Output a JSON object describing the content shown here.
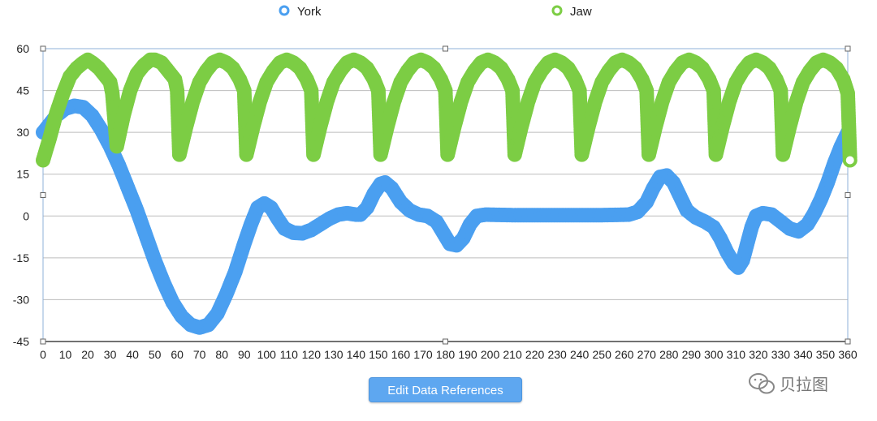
{
  "chart_data": {
    "type": "scatter",
    "xlabel": "",
    "ylabel": "",
    "xlim": [
      0,
      360
    ],
    "ylim": [
      -45,
      60
    ],
    "x_ticks": [
      0,
      10,
      20,
      30,
      40,
      50,
      60,
      70,
      80,
      90,
      100,
      110,
      120,
      130,
      140,
      150,
      160,
      170,
      180,
      190,
      200,
      210,
      220,
      230,
      240,
      250,
      260,
      270,
      280,
      290,
      300,
      310,
      320,
      330,
      340,
      350,
      360
    ],
    "y_ticks": [
      -45,
      -30,
      -15,
      0,
      15,
      30,
      45,
      60
    ],
    "grid": "horizontal",
    "legend": "top",
    "series": [
      {
        "name": "York",
        "color": "#4a9ff0",
        "points": [
          [
            0,
            30
          ],
          [
            3,
            33
          ],
          [
            6,
            36
          ],
          [
            10,
            38.5
          ],
          [
            14,
            39.5
          ],
          [
            18,
            39
          ],
          [
            22,
            36
          ],
          [
            26,
            31
          ],
          [
            30,
            25
          ],
          [
            34,
            18
          ],
          [
            38,
            10
          ],
          [
            42,
            2
          ],
          [
            46,
            -7
          ],
          [
            50,
            -16
          ],
          [
            54,
            -24
          ],
          [
            58,
            -31
          ],
          [
            62,
            -36
          ],
          [
            66,
            -39
          ],
          [
            70,
            -40
          ],
          [
            74,
            -39
          ],
          [
            78,
            -35
          ],
          [
            82,
            -28
          ],
          [
            86,
            -20
          ],
          [
            90,
            -10
          ],
          [
            93,
            -3
          ],
          [
            96,
            3
          ],
          [
            99,
            4.5
          ],
          [
            102,
            3
          ],
          [
            105,
            -1
          ],
          [
            108,
            -4.5
          ],
          [
            112,
            -6
          ],
          [
            116,
            -6.2
          ],
          [
            120,
            -5
          ],
          [
            124,
            -3
          ],
          [
            128,
            -1
          ],
          [
            132,
            0.5
          ],
          [
            136,
            1
          ],
          [
            140,
            0.5
          ],
          [
            142,
            0.5
          ],
          [
            145,
            3
          ],
          [
            148,
            8
          ],
          [
            151,
            11.5
          ],
          [
            153,
            12
          ],
          [
            156,
            10
          ],
          [
            160,
            5
          ],
          [
            164,
            2
          ],
          [
            168,
            0.5
          ],
          [
            172,
            0
          ],
          [
            176,
            -2
          ],
          [
            179,
            -6
          ],
          [
            182,
            -10
          ],
          [
            185,
            -10.5
          ],
          [
            188,
            -8
          ],
          [
            191,
            -3
          ],
          [
            194,
            0
          ],
          [
            198,
            0.5
          ],
          [
            210,
            0.3
          ],
          [
            230,
            0.3
          ],
          [
            250,
            0.3
          ],
          [
            262,
            0.5
          ],
          [
            266,
            1.5
          ],
          [
            270,
            5
          ],
          [
            273,
            10
          ],
          [
            276,
            14
          ],
          [
            279,
            14.5
          ],
          [
            282,
            12
          ],
          [
            285,
            7
          ],
          [
            288,
            2
          ],
          [
            292,
            -0.5
          ],
          [
            296,
            -2
          ],
          [
            300,
            -4
          ],
          [
            303,
            -8
          ],
          [
            306,
            -13
          ],
          [
            309,
            -17
          ],
          [
            311,
            -18.5
          ],
          [
            313,
            -16
          ],
          [
            315,
            -10
          ],
          [
            317,
            -4
          ],
          [
            319,
            0
          ],
          [
            322,
            1
          ],
          [
            326,
            0.5
          ],
          [
            330,
            -2
          ],
          [
            334,
            -4.5
          ],
          [
            338,
            -5.5
          ],
          [
            342,
            -3
          ],
          [
            345,
            1
          ],
          [
            348,
            6
          ],
          [
            351,
            12
          ],
          [
            354,
            19
          ],
          [
            357,
            25
          ],
          [
            360,
            30
          ]
        ]
      },
      {
        "name": "Jaw",
        "color": "#7ccd44",
        "points": [
          [
            0,
            20
          ],
          [
            3,
            28
          ],
          [
            6,
            37
          ],
          [
            9,
            44
          ],
          [
            12,
            50
          ],
          [
            15,
            53
          ],
          [
            18,
            55
          ],
          [
            20,
            56
          ],
          [
            22,
            55
          ],
          [
            25,
            53
          ],
          [
            28,
            50
          ],
          [
            30,
            48
          ],
          [
            31,
            44
          ],
          [
            33,
            25
          ],
          [
            36,
            36
          ],
          [
            39,
            45
          ],
          [
            42,
            51
          ],
          [
            45,
            54
          ],
          [
            48,
            56
          ],
          [
            50,
            56
          ],
          [
            53,
            55
          ],
          [
            56,
            52
          ],
          [
            59,
            49
          ],
          [
            60,
            45
          ],
          [
            61,
            22
          ],
          [
            64,
            32
          ],
          [
            67,
            41
          ],
          [
            70,
            48
          ],
          [
            73,
            52
          ],
          [
            76,
            55
          ],
          [
            79,
            56
          ],
          [
            82,
            55
          ],
          [
            85,
            53
          ],
          [
            88,
            49
          ],
          [
            90,
            45
          ],
          [
            91,
            22
          ],
          [
            94,
            32
          ],
          [
            97,
            41
          ],
          [
            100,
            48
          ],
          [
            103,
            52
          ],
          [
            106,
            55
          ],
          [
            109,
            56
          ],
          [
            112,
            55
          ],
          [
            115,
            53
          ],
          [
            118,
            49
          ],
          [
            120,
            45
          ],
          [
            121,
            22
          ],
          [
            124,
            32
          ],
          [
            127,
            41
          ],
          [
            130,
            48
          ],
          [
            133,
            52
          ],
          [
            136,
            55
          ],
          [
            139,
            56
          ],
          [
            142,
            55
          ],
          [
            145,
            53
          ],
          [
            148,
            49
          ],
          [
            150,
            45
          ],
          [
            151,
            22
          ],
          [
            154,
            32
          ],
          [
            157,
            41
          ],
          [
            160,
            48
          ],
          [
            163,
            52
          ],
          [
            166,
            55
          ],
          [
            169,
            56
          ],
          [
            172,
            55
          ],
          [
            175,
            53
          ],
          [
            178,
            49
          ],
          [
            180,
            45
          ],
          [
            181,
            22
          ],
          [
            184,
            32
          ],
          [
            187,
            41
          ],
          [
            190,
            48
          ],
          [
            193,
            52
          ],
          [
            196,
            55
          ],
          [
            199,
            56
          ],
          [
            202,
            55
          ],
          [
            205,
            53
          ],
          [
            208,
            49
          ],
          [
            210,
            45
          ],
          [
            211,
            22
          ],
          [
            214,
            32
          ],
          [
            217,
            41
          ],
          [
            220,
            48
          ],
          [
            223,
            52
          ],
          [
            226,
            55
          ],
          [
            229,
            56
          ],
          [
            232,
            55
          ],
          [
            235,
            53
          ],
          [
            238,
            49
          ],
          [
            240,
            45
          ],
          [
            241,
            22
          ],
          [
            244,
            32
          ],
          [
            247,
            41
          ],
          [
            250,
            48
          ],
          [
            253,
            52
          ],
          [
            256,
            55
          ],
          [
            259,
            56
          ],
          [
            262,
            55
          ],
          [
            265,
            53
          ],
          [
            268,
            49
          ],
          [
            270,
            45
          ],
          [
            271,
            22
          ],
          [
            274,
            32
          ],
          [
            277,
            41
          ],
          [
            280,
            48
          ],
          [
            283,
            52
          ],
          [
            286,
            55
          ],
          [
            289,
            56
          ],
          [
            292,
            55
          ],
          [
            295,
            53
          ],
          [
            298,
            49
          ],
          [
            300,
            45
          ],
          [
            301,
            22
          ],
          [
            304,
            32
          ],
          [
            307,
            41
          ],
          [
            310,
            48
          ],
          [
            313,
            52
          ],
          [
            316,
            55
          ],
          [
            319,
            56
          ],
          [
            322,
            55
          ],
          [
            325,
            53
          ],
          [
            328,
            49
          ],
          [
            330,
            45
          ],
          [
            331,
            22
          ],
          [
            334,
            32
          ],
          [
            337,
            41
          ],
          [
            340,
            48
          ],
          [
            343,
            52
          ],
          [
            346,
            55
          ],
          [
            349,
            56
          ],
          [
            352,
            55
          ],
          [
            355,
            53
          ],
          [
            358,
            49
          ],
          [
            360,
            44
          ],
          [
            361,
            20
          ]
        ]
      }
    ]
  },
  "button": {
    "label": "Edit Data References"
  },
  "watermark": {
    "text": "贝拉图"
  }
}
